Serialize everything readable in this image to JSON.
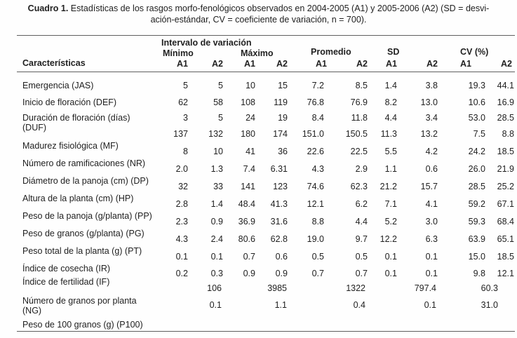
{
  "caption": {
    "label": "Cuadro 1.",
    "line1": " Estadísticas de los rasgos morfo-fenológicos observados en 2004-2005 (A1) y 2005-2006 (A2) (SD = desvi-",
    "line2": "ación-estándar, CV = coeficiente de variación, n = 700)."
  },
  "table": {
    "col_header": "Características",
    "group_headers": {
      "intervalo": "Intervalo de variación",
      "minimo": "Mínimo",
      "maximo": "Máximo",
      "promedio": "Promedio",
      "sd": "SD",
      "cv": "CV (%)"
    },
    "sub_headers": [
      "A1",
      "A2",
      "A1",
      "A2",
      "A1",
      "A2",
      "A1",
      "A2",
      "A1",
      "A2"
    ],
    "rows": [
      {
        "label": "Emergencia (JAS)",
        "values": [
          "5",
          "5",
          "10",
          "15",
          "7.2",
          "8.5",
          "1.4",
          "3.8",
          "19.3",
          "44.1"
        ]
      },
      {
        "label": "Inicio de floración (DEF)",
        "values": [
          "62",
          "58",
          "108",
          "119",
          "76.8",
          "76.9",
          "8.2",
          "13.0",
          "10.6",
          "16.9"
        ]
      },
      {
        "label": "Duración de floración (días)",
        "label2": "(DUF)",
        "values": [
          "3",
          "5",
          "24",
          "19",
          "8.4",
          "11.8",
          "4.4",
          "3.4",
          "53.0",
          "28.5"
        ],
        "values2": [
          "137",
          "132",
          "180",
          "174",
          "151.0",
          "150.5",
          "11.3",
          "13.2",
          "7.5",
          "8.8"
        ]
      },
      {
        "label": "Madurez fisiológica (MF)",
        "values": [
          "8",
          "10",
          "41",
          "36",
          "22.6",
          "22.5",
          "5.5",
          "4.2",
          "24.2",
          "18.5"
        ]
      },
      {
        "label": "Número de ramificaciones (NR)",
        "values": [
          "2.0",
          "1.3",
          "7.4",
          "6.31",
          "4.3",
          "2.9",
          "1.1",
          "0.6",
          "26.0",
          "21.9"
        ]
      },
      {
        "label": "Diámetro de la panoja (cm) (DP)",
        "values": [
          "32",
          "33",
          "141",
          "123",
          "74.6",
          "62.3",
          "21.2",
          "15.7",
          "28.5",
          "25.2"
        ]
      },
      {
        "label": "Altura de la planta (cm) (HP)",
        "values": [
          "2.8",
          "1.4",
          "48.4",
          "41.3",
          "12.1",
          "6.2",
          "7.1",
          "4.1",
          "59.2",
          "67.1"
        ]
      },
      {
        "label": "Peso de la panoja (g/planta) (PP)",
        "values": [
          "2.3",
          "0.9",
          "36.9",
          "31.6",
          "8.8",
          "4.4",
          "5.2",
          "3.0",
          "59.3",
          "68.4"
        ]
      },
      {
        "label": "Peso de granos (g/planta) (PG)",
        "values": [
          "4.3",
          "2.4",
          "80.6",
          "62.8",
          "19.0",
          "9.7",
          "12.2",
          "6.3",
          "63.9",
          "65.1"
        ]
      },
      {
        "label": "Peso total de la planta (g) (PT)",
        "values": [
          "0.1",
          "0.1",
          "0.7",
          "0.6",
          "0.5",
          "0.5",
          "0.1",
          "0.1",
          "15.0",
          "18.5"
        ]
      },
      {
        "label": "Índice de cosecha (IR)",
        "values": [
          "0.2",
          "0.3",
          "0.9",
          "0.9",
          "0.7",
          "0.7",
          "0.1",
          "0.1",
          "9.8",
          "12.1"
        ]
      },
      {
        "label": "Índice de fertilidad (IF)",
        "values": [
          "",
          "106",
          "",
          "3985",
          "",
          "1322",
          "",
          "797.4",
          "",
          "60.3"
        ]
      },
      {
        "label": "Número de granos por planta",
        "label2": "(NG)",
        "values": [
          "",
          "0.1",
          "",
          "1.1",
          "",
          "0.4",
          "",
          "0.1",
          "",
          "31.0"
        ]
      },
      {
        "label": "Peso de 100 granos (g) (P100)",
        "values": [
          "",
          "",
          "",
          "",
          "",
          "",
          "",
          "",
          "",
          ""
        ]
      }
    ]
  }
}
